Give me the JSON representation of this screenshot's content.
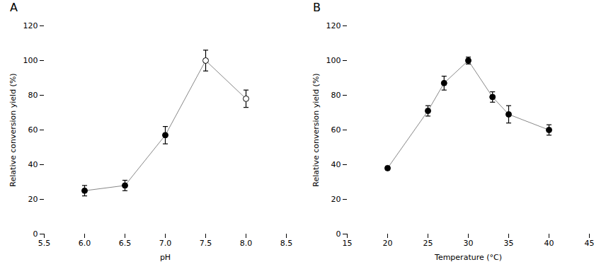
{
  "chart_data": [
    {
      "type": "line",
      "title": "A",
      "x": [
        6.0,
        6.5,
        7.0,
        7.5,
        8.0
      ],
      "values": [
        25,
        28,
        57,
        100,
        78
      ],
      "error": [
        3,
        3,
        5,
        6,
        5
      ],
      "color": "#888888",
      "colors": [
        "#000000",
        "#000000",
        "#000000",
        "#ffffff",
        "#ffffff"
      ],
      "marker": "circle",
      "xlabel": "pH",
      "ylabel": "Relative conversion yield (%)",
      "xlim": [
        5.5,
        8.5
      ],
      "xticks": [
        5.5,
        {
          "value": 6,
          "label": "6.0"
        },
        6.5,
        {
          "value": 7,
          "label": "7.0"
        },
        7.5,
        {
          "value": 8,
          "label": "8.0"
        },
        8.5
      ],
      "ylim": [
        0,
        120
      ],
      "yticks": [
        0,
        20,
        40,
        60,
        80,
        100,
        120
      ]
    },
    {
      "type": "line",
      "title": "B",
      "x": [
        20,
        25,
        27,
        30,
        33,
        35,
        40
      ],
      "values": [
        38,
        71,
        87,
        100,
        79,
        69,
        60
      ],
      "error": [
        1,
        3,
        4,
        2,
        3,
        5,
        3
      ],
      "color": "#888888",
      "colors": [
        "#000000",
        "#000000",
        "#000000",
        "#000000",
        "#000000",
        "#000000",
        "#000000"
      ],
      "marker": "circle",
      "xlabel": "Temperature (°C)",
      "ylabel": "Relative conversion yield (%)",
      "xlim": [
        15,
        45
      ],
      "xticks": [
        15,
        20,
        25,
        30,
        35,
        40,
        45
      ],
      "ylim": [
        0,
        120
      ],
      "yticks": [
        0,
        20,
        40,
        60,
        80,
        100,
        120
      ]
    }
  ]
}
